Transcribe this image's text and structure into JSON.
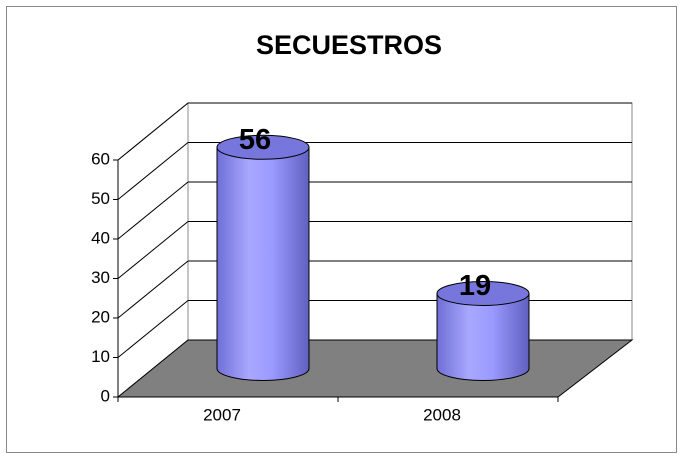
{
  "chart_data": {
    "type": "bar",
    "title": "SECUESTROS",
    "categories": [
      "2007",
      "2008"
    ],
    "values": [
      56,
      19
    ],
    "color": "#9999ff",
    "ylim": [
      0,
      60
    ],
    "yticks": [
      0,
      10,
      20,
      30,
      40,
      50,
      60
    ],
    "grid": true
  }
}
